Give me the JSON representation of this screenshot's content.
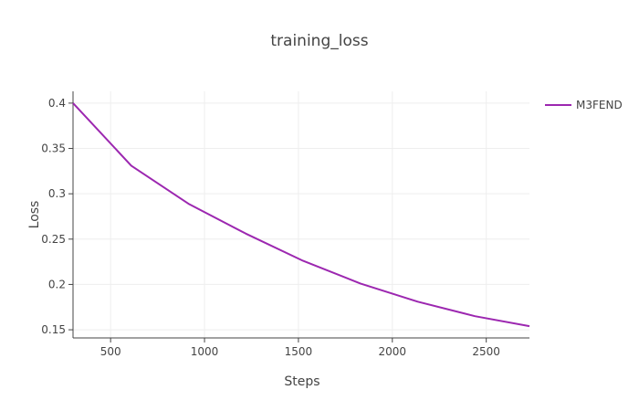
{
  "chart_data": {
    "type": "line",
    "title": "training_loss",
    "xlabel": "Steps",
    "ylabel": "Loss",
    "xlim": [
      300,
      2730
    ],
    "ylim": [
      0.141,
      0.413
    ],
    "x_ticks": [
      500,
      1000,
      1500,
      2000,
      2500
    ],
    "y_ticks": [
      0.15,
      0.2,
      0.25,
      0.3,
      0.35,
      0.4
    ],
    "x_tick_labels": [
      "500",
      "1000",
      "1500",
      "2000",
      "2500"
    ],
    "y_tick_labels": [
      "0.15",
      "0.2",
      "0.25",
      "0.3",
      "0.35",
      "0.4"
    ],
    "grid": true,
    "legend_position": "top-right",
    "series": [
      {
        "name": "M3FEND",
        "color": "#9c27b0",
        "x": [
          300,
          610,
          915,
          1220,
          1525,
          1830,
          2135,
          2440,
          2730
        ],
        "y": [
          0.4,
          0.331,
          0.289,
          0.256,
          0.226,
          0.201,
          0.181,
          0.165,
          0.154
        ]
      }
    ]
  }
}
